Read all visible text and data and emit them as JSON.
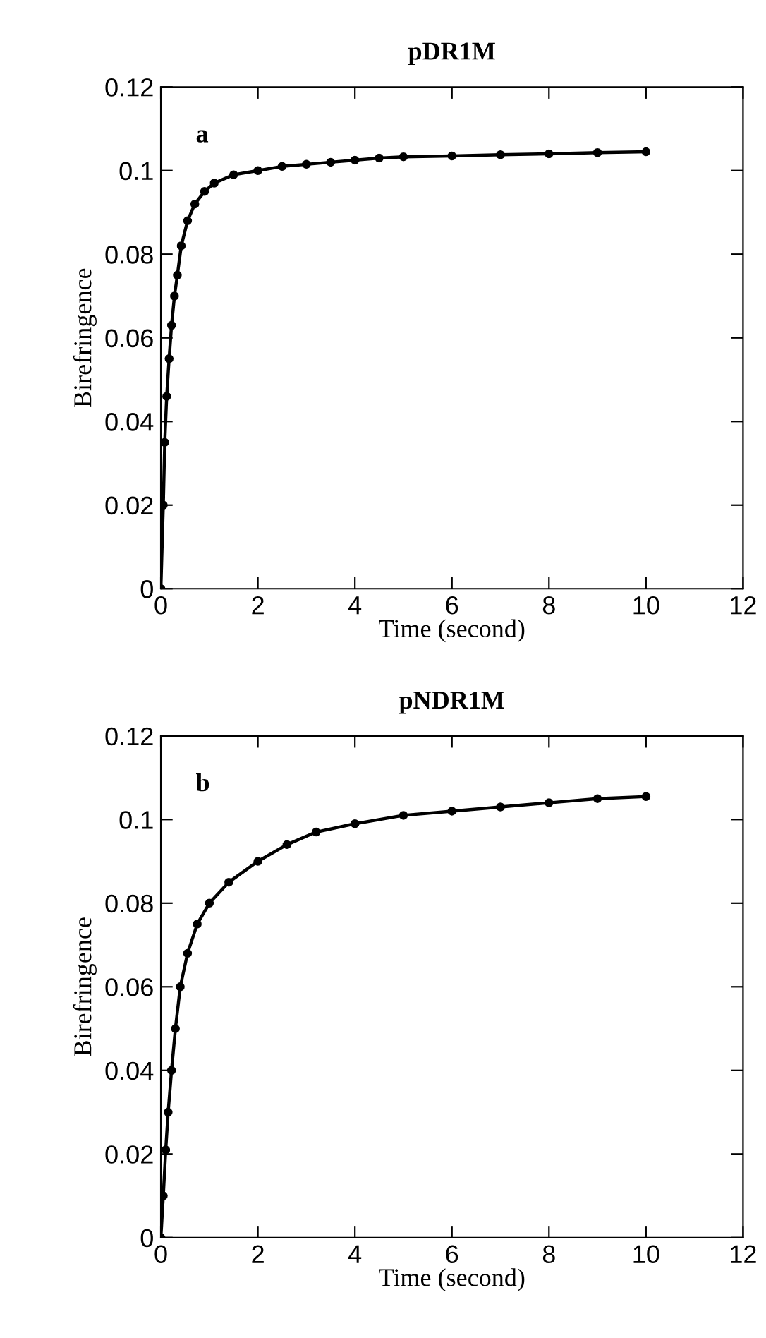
{
  "chart_data": [
    {
      "type": "line",
      "title": "pDR1M",
      "xlabel": "Time (second)",
      "ylabel": "Birefringence",
      "annotations": [
        "a"
      ],
      "marker": "circle",
      "line_style": "solid",
      "grid": false,
      "legend": false,
      "xlim": [
        0,
        12
      ],
      "xticks": [
        0,
        2,
        4,
        6,
        8,
        10,
        12
      ],
      "ylim": [
        0,
        0.12
      ],
      "yticks": [
        0,
        0.02,
        0.04,
        0.06,
        0.08,
        0.1,
        0.12
      ],
      "series": [
        {
          "color": "#000000",
          "x": [
            0,
            0.05,
            0.08,
            0.12,
            0.17,
            0.22,
            0.28,
            0.34,
            0.42,
            0.55,
            0.7,
            0.9,
            1.1,
            1.5,
            2,
            2.5,
            3,
            3.5,
            4,
            4.5,
            5,
            6,
            7,
            8,
            9,
            10
          ],
          "values": [
            0,
            0.02,
            0.035,
            0.046,
            0.055,
            0.063,
            0.07,
            0.075,
            0.082,
            0.088,
            0.092,
            0.095,
            0.097,
            0.099,
            0.1,
            0.101,
            0.1015,
            0.102,
            0.1025,
            0.103,
            0.1033,
            0.1035,
            0.1038,
            0.104,
            0.1043,
            0.1045
          ]
        }
      ]
    },
    {
      "type": "line",
      "title": "pNDR1M",
      "xlabel": "Time (second)",
      "ylabel": "Birefringence",
      "annotations": [
        "b"
      ],
      "marker": "circle",
      "line_style": "solid",
      "grid": false,
      "legend": false,
      "xlim": [
        0,
        12
      ],
      "xticks": [
        0,
        2,
        4,
        6,
        8,
        10,
        12
      ],
      "ylim": [
        0,
        0.12
      ],
      "yticks": [
        0,
        0.02,
        0.04,
        0.06,
        0.08,
        0.1,
        0.12
      ],
      "series": [
        {
          "color": "#000000",
          "x": [
            0,
            0.05,
            0.1,
            0.15,
            0.22,
            0.3,
            0.4,
            0.55,
            0.75,
            1.0,
            1.4,
            2.0,
            2.6,
            3.2,
            4,
            5,
            6,
            7,
            8,
            9,
            10
          ],
          "values": [
            0,
            0.01,
            0.021,
            0.03,
            0.04,
            0.05,
            0.06,
            0.068,
            0.075,
            0.08,
            0.085,
            0.09,
            0.094,
            0.097,
            0.099,
            0.101,
            0.102,
            0.103,
            0.104,
            0.105,
            0.1055
          ]
        }
      ]
    }
  ]
}
